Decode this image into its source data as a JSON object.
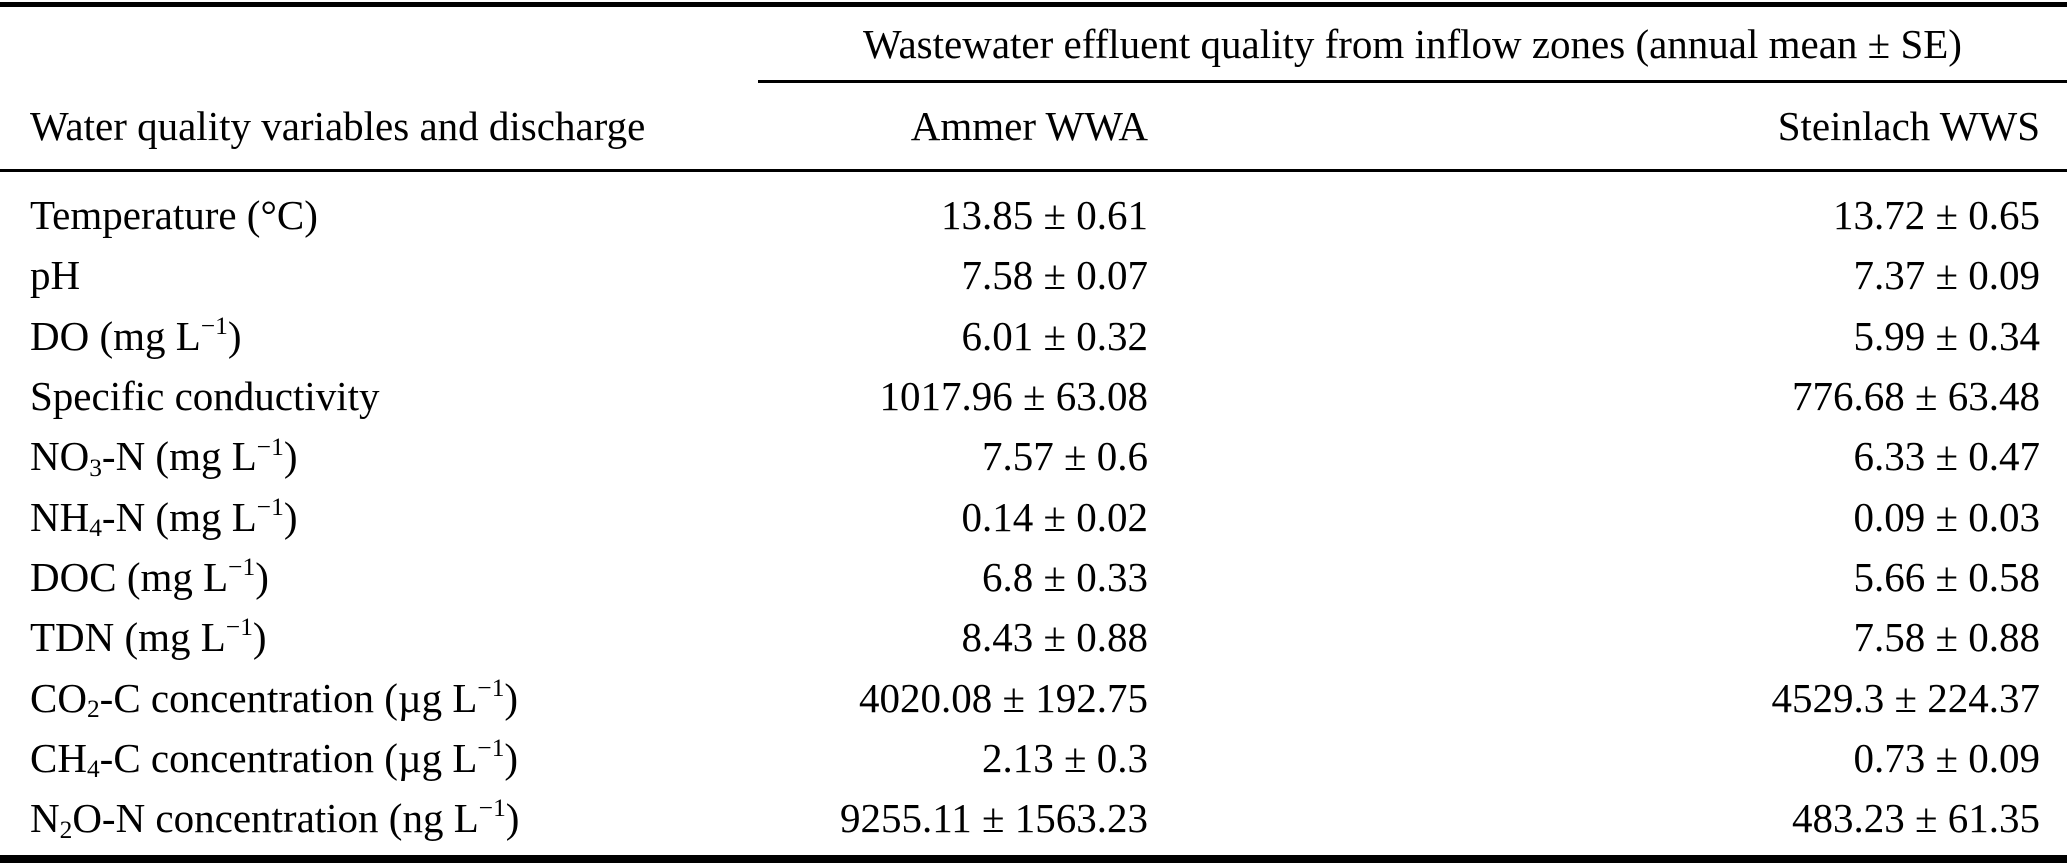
{
  "colors": {
    "text": "#000000",
    "background": "#ffffff",
    "rule": "#000000"
  },
  "table": {
    "span_header": "Wastewater effluent quality from inflow zones (annual mean ± SE)",
    "col1_header": "Water quality variables and discharge",
    "col2_header": "Ammer WWA",
    "col3_header": "Steinlach WWS",
    "rows": [
      {
        "label": "Temperature (°C)",
        "ammer": "13.85 ± 0.61",
        "steinlach": "13.72 ± 0.65"
      },
      {
        "label": "pH",
        "ammer": "7.58 ± 0.07",
        "steinlach": "7.37 ± 0.09"
      },
      {
        "label": "DO (mg L^−1^)",
        "ammer": "6.01 ± 0.32",
        "steinlach": "5.99 ± 0.34"
      },
      {
        "label": "Specific conductivity",
        "ammer": "1017.96 ± 63.08",
        "steinlach": "776.68 ± 63.48"
      },
      {
        "label": "NO~3~-N (mg L^−1^)",
        "ammer": "7.57 ± 0.6",
        "steinlach": "6.33 ± 0.47"
      },
      {
        "label": "NH~4~-N (mg L^−1^)",
        "ammer": "0.14 ± 0.02",
        "steinlach": "0.09 ± 0.03"
      },
      {
        "label": "DOC (mg L^−1^)",
        "ammer": "6.8 ± 0.33",
        "steinlach": "5.66 ± 0.58"
      },
      {
        "label": "TDN (mg L^−1^)",
        "ammer": "8.43 ± 0.88",
        "steinlach": "7.58 ± 0.88"
      },
      {
        "label": "CO~2~-C concentration (µg L^−1^)",
        "ammer": "4020.08 ± 192.75",
        "steinlach": "4529.3 ± 224.37"
      },
      {
        "label": "CH~4~-C concentration (µg L^−1^)",
        "ammer": "2.13 ± 0.3",
        "steinlach": "0.73 ± 0.09"
      },
      {
        "label": "N~2~O-N concentration (ng L^−1^)",
        "ammer": "9255.11 ± 1563.23",
        "steinlach": "483.23 ± 61.35"
      }
    ]
  }
}
